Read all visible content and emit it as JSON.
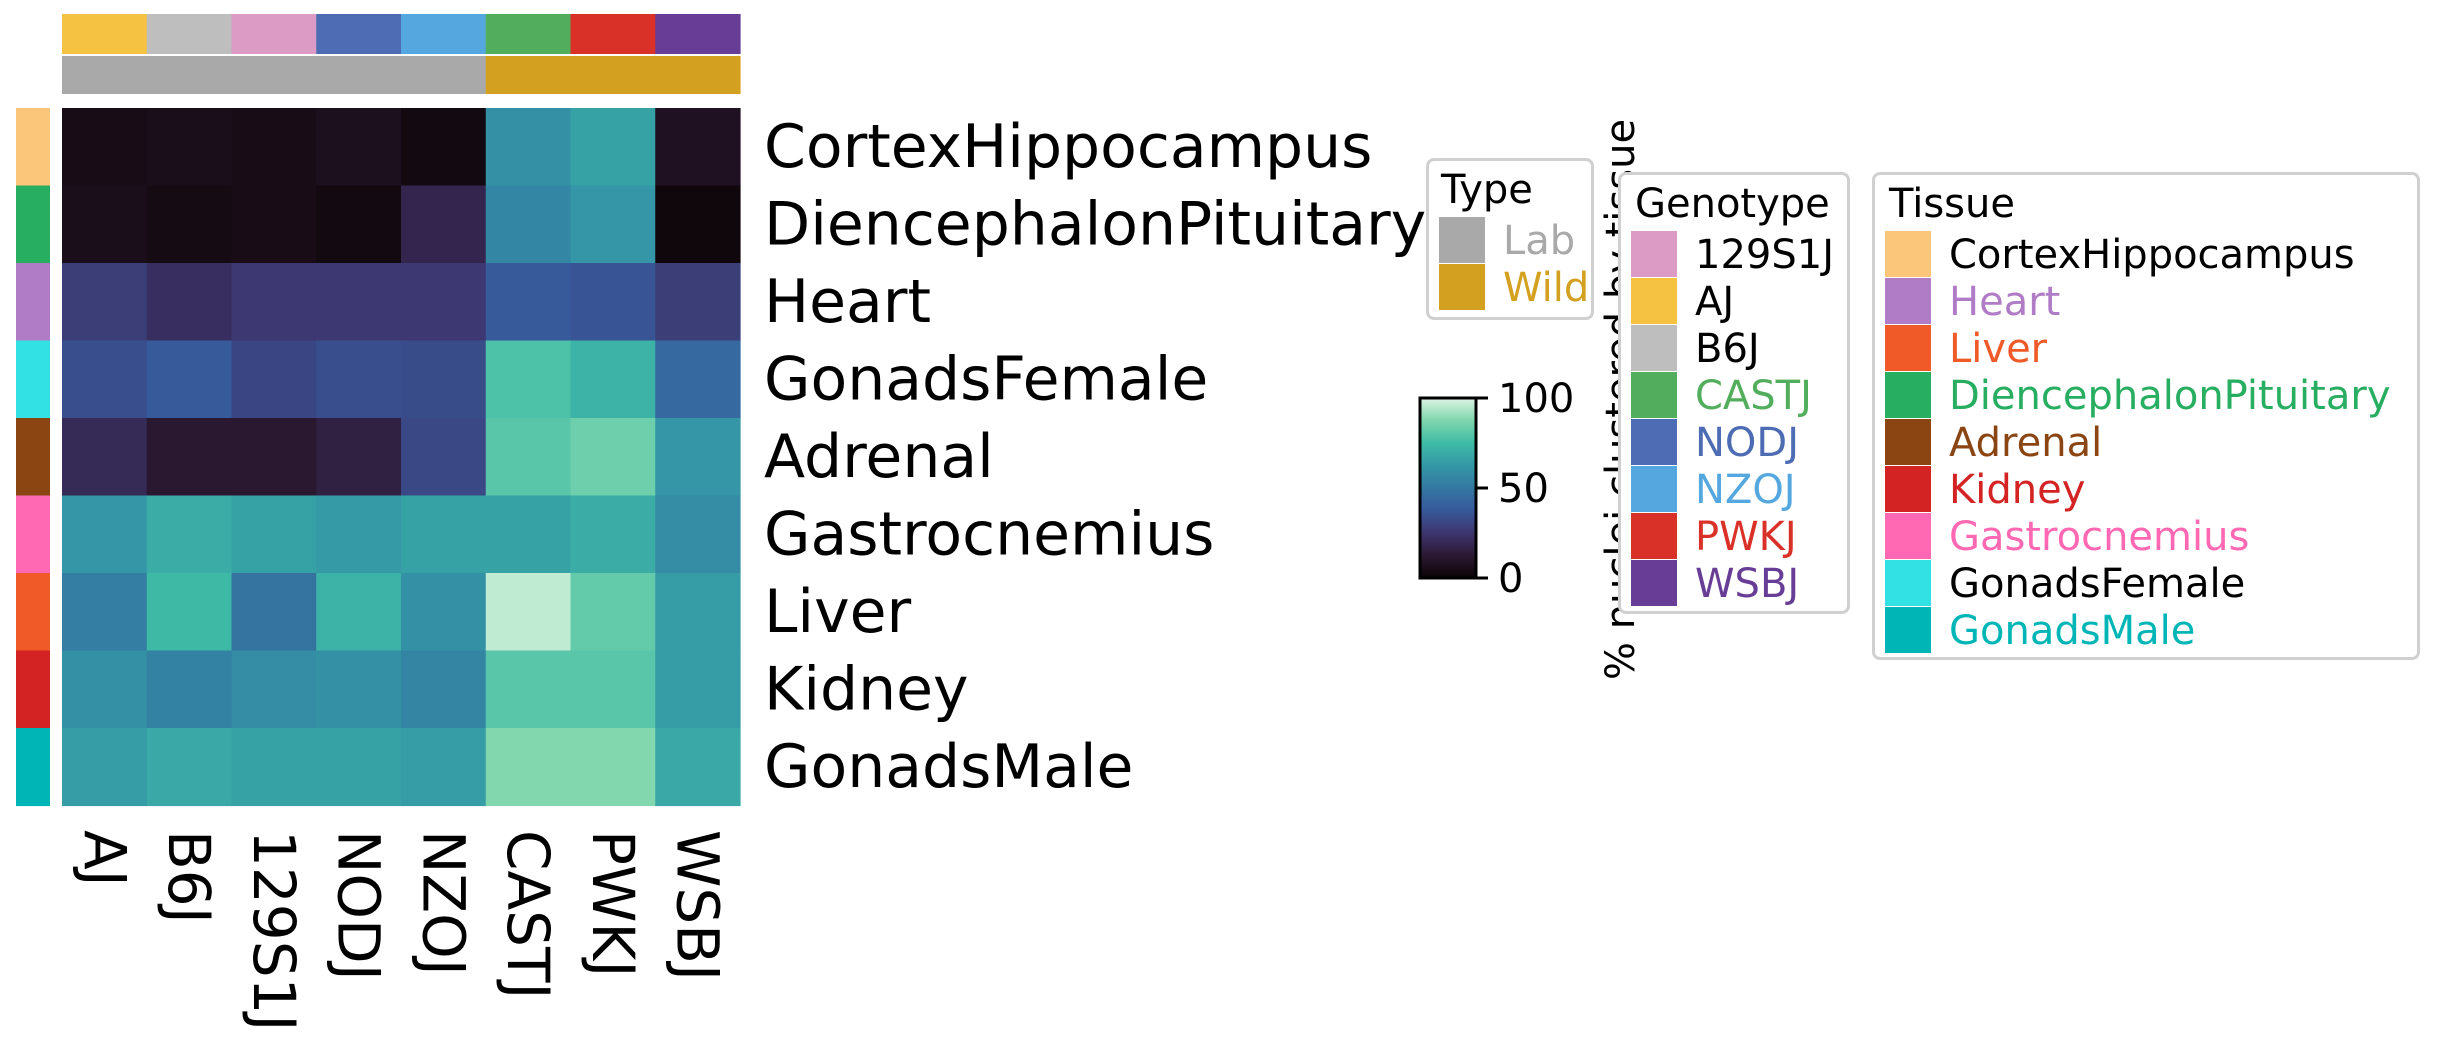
{
  "chart_data": {
    "type": "heatmap",
    "columns": [
      "AJ",
      "B6J",
      "129S1J",
      "NODJ",
      "NZOJ",
      "CASTJ",
      "PWKJ",
      "WSBJ"
    ],
    "rows": [
      "CortexHippocampus",
      "DiencephalonPituitary",
      "Heart",
      "GonadsFemale",
      "Adrenal",
      "Gastrocnemius",
      "Liver",
      "Kidney",
      "GonadsMale"
    ],
    "values": [
      [
        5,
        6,
        5,
        7,
        3,
        60,
        66,
        8
      ],
      [
        6,
        4,
        5,
        3,
        18,
        56,
        62,
        2
      ],
      [
        28,
        22,
        26,
        26,
        26,
        38,
        36,
        28
      ],
      [
        34,
        38,
        31,
        34,
        33,
        78,
        72,
        44
      ],
      [
        20,
        12,
        12,
        16,
        32,
        80,
        84,
        62
      ],
      [
        62,
        70,
        66,
        63,
        66,
        66,
        70,
        58
      ],
      [
        52,
        74,
        48,
        72,
        60,
        96,
        82,
        64
      ],
      [
        60,
        54,
        58,
        60,
        55,
        80,
        80,
        64
      ],
      [
        64,
        68,
        66,
        66,
        64,
        88,
        88,
        68
      ]
    ],
    "colorbar": {
      "label": "% nuclei clustered by tissue",
      "ticks": [
        "0",
        "50",
        "100"
      ],
      "range": [
        0,
        100
      ]
    },
    "column_genotype_colors": [
      "#F5C242",
      "#BEBEBE",
      "#DB9BC4",
      "#4E6CB3",
      "#55A8DF",
      "#52AE5C",
      "#D93128",
      "#683D96"
    ],
    "column_type_colors": [
      "#A9A9A9",
      "#A9A9A9",
      "#A9A9A9",
      "#A9A9A9",
      "#A9A9A9",
      "#D4A020",
      "#D4A020",
      "#D4A020"
    ],
    "row_tissue_colors": [
      "#FBC67A",
      "#27AE60",
      "#B07CC6",
      "#31E1E3",
      "#8B4513",
      "#FF69B4",
      "#F05A28",
      "#D42323",
      "#00B5B5"
    ],
    "legend_type": {
      "title": "Type",
      "items": [
        {
          "label": "Lab",
          "color": "#A9A9A9"
        },
        {
          "label": "Wild",
          "color": "#D4A020"
        }
      ]
    },
    "legend_genotype": {
      "title": "Genotype",
      "items": [
        {
          "label": "129S1J",
          "color": "#DB9BC4",
          "text_color": "#000000"
        },
        {
          "label": "AJ",
          "color": "#F5C242",
          "text_color": "#000000"
        },
        {
          "label": "B6J",
          "color": "#BEBEBE",
          "text_color": "#000000"
        },
        {
          "label": "CASTJ",
          "color": "#52AE5C",
          "text_color": "#52AE5C"
        },
        {
          "label": "NODJ",
          "color": "#4E6CB3",
          "text_color": "#4E6CB3"
        },
        {
          "label": "NZOJ",
          "color": "#55A8DF",
          "text_color": "#55A8DF"
        },
        {
          "label": "PWKJ",
          "color": "#D93128",
          "text_color": "#D93128"
        },
        {
          "label": "WSBJ",
          "color": "#683D96",
          "text_color": "#683D96"
        }
      ]
    },
    "legend_tissue": {
      "title": "Tissue",
      "items": [
        {
          "label": "CortexHippocampus",
          "color": "#FBC67A",
          "text_color": "#000000"
        },
        {
          "label": "Heart",
          "color": "#B07CC6",
          "text_color": "#B07CC6"
        },
        {
          "label": "Liver",
          "color": "#F05A28",
          "text_color": "#F05A28"
        },
        {
          "label": "DiencephalonPituitary",
          "color": "#27AE60",
          "text_color": "#27AE60"
        },
        {
          "label": "Adrenal",
          "color": "#8B4513",
          "text_color": "#8B4513"
        },
        {
          "label": "Kidney",
          "color": "#D42323",
          "text_color": "#D42323"
        },
        {
          "label": "Gastrocnemius",
          "color": "#FF69B4",
          "text_color": "#FF69B4"
        },
        {
          "label": "GonadsFemale",
          "color": "#31E1E3",
          "text_color": "#000000"
        },
        {
          "label": "GonadsMale",
          "color": "#00B5B5",
          "text_color": "#00B5B5"
        }
      ]
    }
  }
}
